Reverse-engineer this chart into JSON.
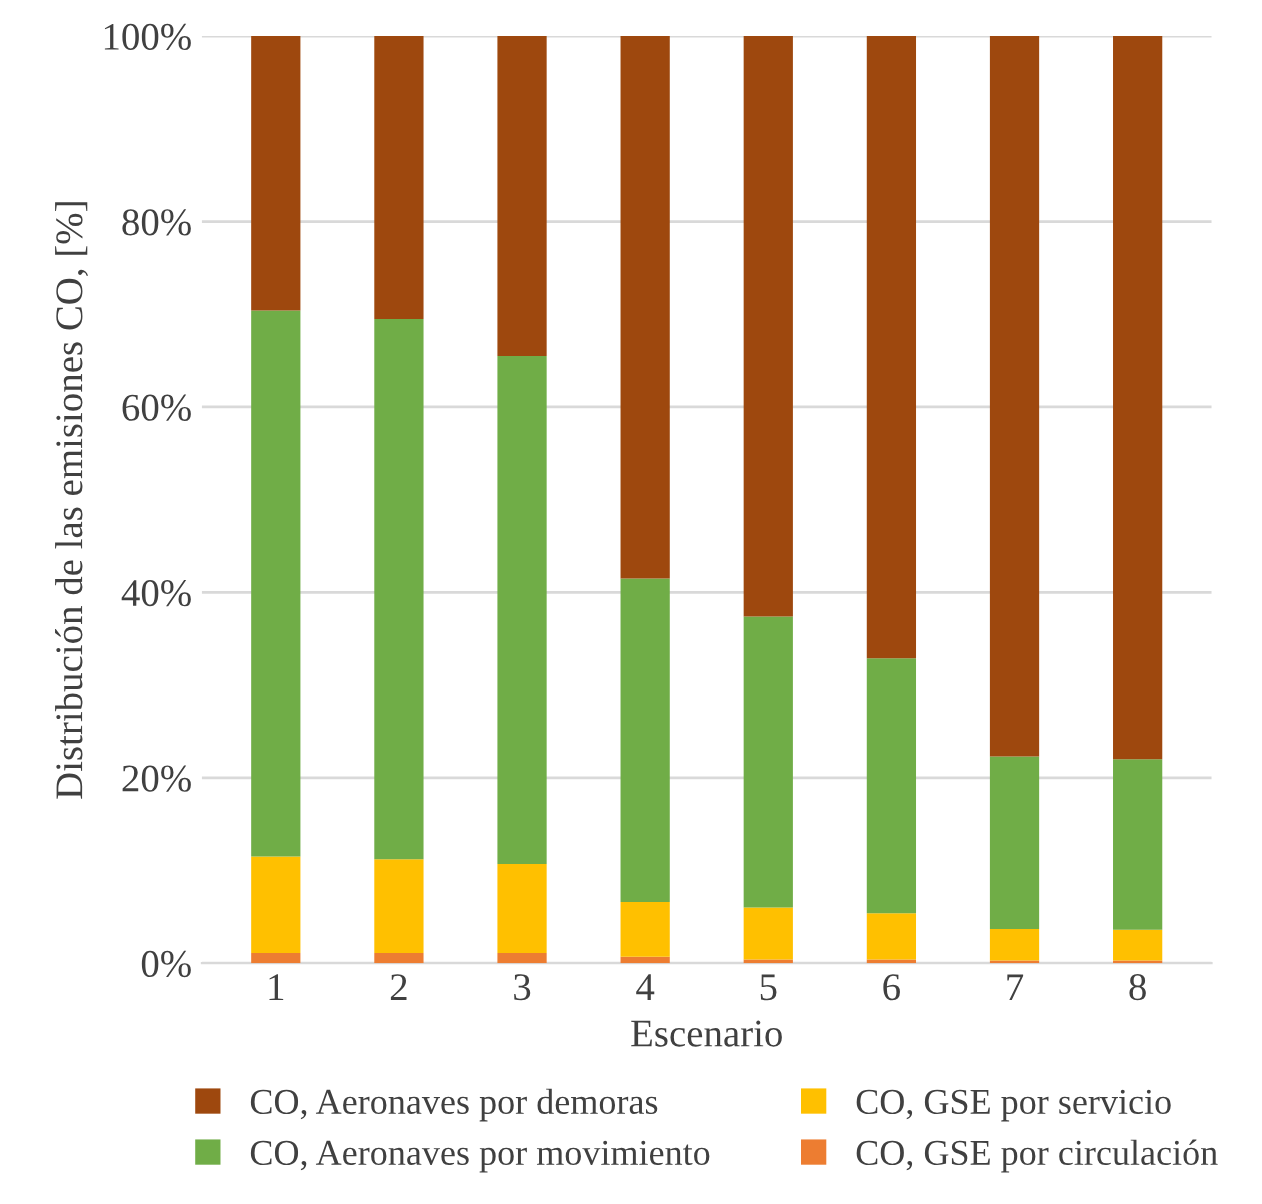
{
  "chart_data": {
    "type": "bar",
    "stacked": true,
    "xlabel": "Escenario",
    "ylabel": "Distribución de las emisiones CO, [%]",
    "categories": [
      "1",
      "2",
      "3",
      "4",
      "5",
      "6",
      "7",
      "8"
    ],
    "series": [
      {
        "name": "CO, GSE por circulación",
        "color": "#ed7d31",
        "values": [
          1.1,
          1.1,
          1.1,
          0.7,
          0.4,
          0.4,
          0.3,
          0.3
        ]
      },
      {
        "name": "CO, GSE por servicio",
        "color": "#ffc000",
        "values": [
          10.4,
          10.1,
          9.6,
          5.9,
          5.6,
          5.0,
          3.4,
          3.3
        ]
      },
      {
        "name": "CO, Aeronaves por movimiento",
        "color": "#70ad47",
        "values": [
          58.9,
          58.3,
          54.8,
          34.9,
          31.4,
          27.5,
          18.6,
          18.4
        ]
      },
      {
        "name": "CO, Aeronaves por demoras",
        "color": "#9e480e",
        "values": [
          29.6,
          30.5,
          34.5,
          58.5,
          62.6,
          67.1,
          77.7,
          78.0
        ]
      }
    ],
    "ylim": [
      0,
      100
    ],
    "yticks": [
      {
        "value": 0,
        "label": "0%"
      },
      {
        "value": 20,
        "label": "20%"
      },
      {
        "value": 40,
        "label": "40%"
      },
      {
        "value": 60,
        "label": "60%"
      },
      {
        "value": 80,
        "label": "80%"
      },
      {
        "value": 100,
        "label": "100%"
      }
    ],
    "grid": "y",
    "legend": "bottom"
  }
}
